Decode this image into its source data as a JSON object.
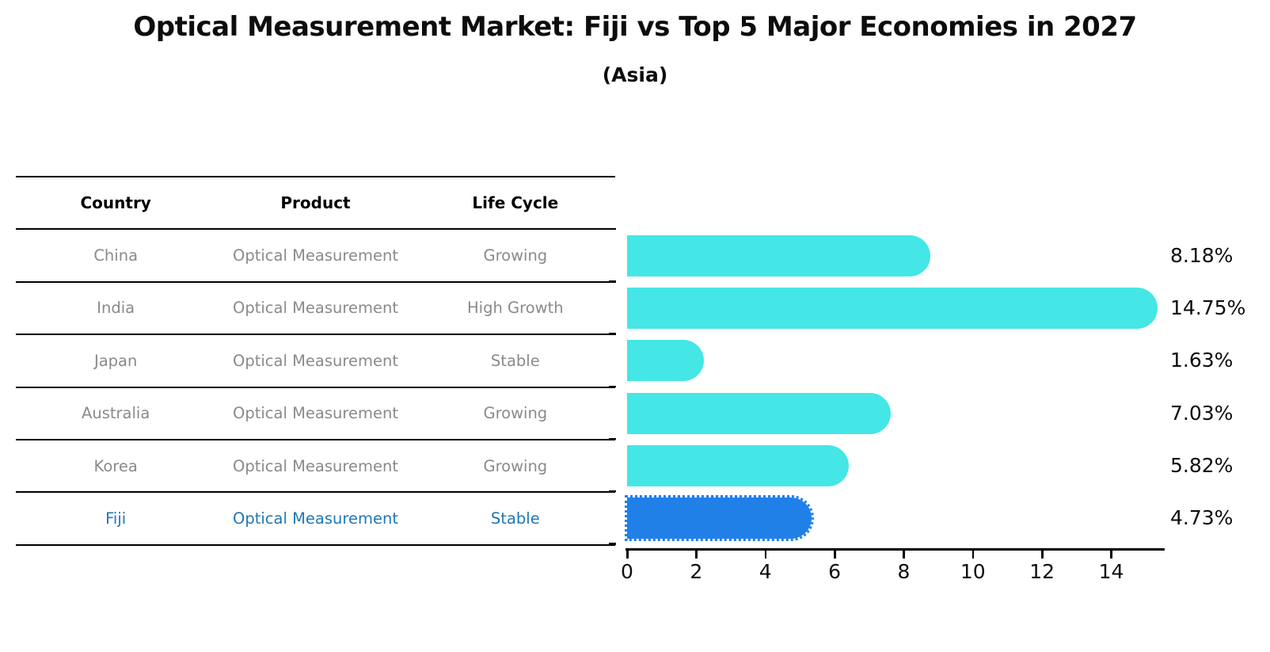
{
  "title": "Optical Measurement Market: Fiji vs Top 5 Major Economies in 2027",
  "subtitle": "(Asia)",
  "table": {
    "headers": [
      "Country",
      "Product",
      "Life Cycle"
    ],
    "rows": [
      {
        "country": "China",
        "product": "Optical Measurement",
        "life_cycle": "Growing",
        "highlight": false
      },
      {
        "country": "India",
        "product": "Optical Measurement",
        "life_cycle": "High Growth",
        "highlight": false
      },
      {
        "country": "Japan",
        "product": "Optical Measurement",
        "life_cycle": "Stable",
        "highlight": false
      },
      {
        "country": "Australia",
        "product": "Optical Measurement",
        "life_cycle": "Growing",
        "highlight": false
      },
      {
        "country": "Korea",
        "product": "Optical Measurement",
        "life_cycle": "Growing",
        "highlight": false
      },
      {
        "country": "Fiji",
        "product": "Optical Measurement",
        "life_cycle": "Stable",
        "highlight": true
      }
    ]
  },
  "chart_data": {
    "type": "bar",
    "orientation": "horizontal",
    "title": "Optical Measurement Market: Fiji vs Top 5 Major Economies in 2027",
    "subtitle": "(Asia)",
    "categories": [
      "China",
      "India",
      "Japan",
      "Australia",
      "Korea",
      "Fiji"
    ],
    "values": [
      8.18,
      14.75,
      1.63,
      7.03,
      5.82,
      4.73
    ],
    "value_labels": [
      "8.18%",
      "14.75%",
      "1.63%",
      "7.03%",
      "5.82%",
      "4.73%"
    ],
    "x_ticks": [
      0,
      2,
      4,
      6,
      8,
      10,
      12,
      14
    ],
    "xlim": [
      0,
      15.5
    ],
    "grid": false,
    "legend": "none",
    "bar_color": "#45e6e6",
    "highlight_index": 5,
    "highlight_bar_color": "#2080e8",
    "highlight_bar_border": "dotted",
    "highlight_text_color": "#1f77b4",
    "table_text_color": "#8a8a8a"
  }
}
